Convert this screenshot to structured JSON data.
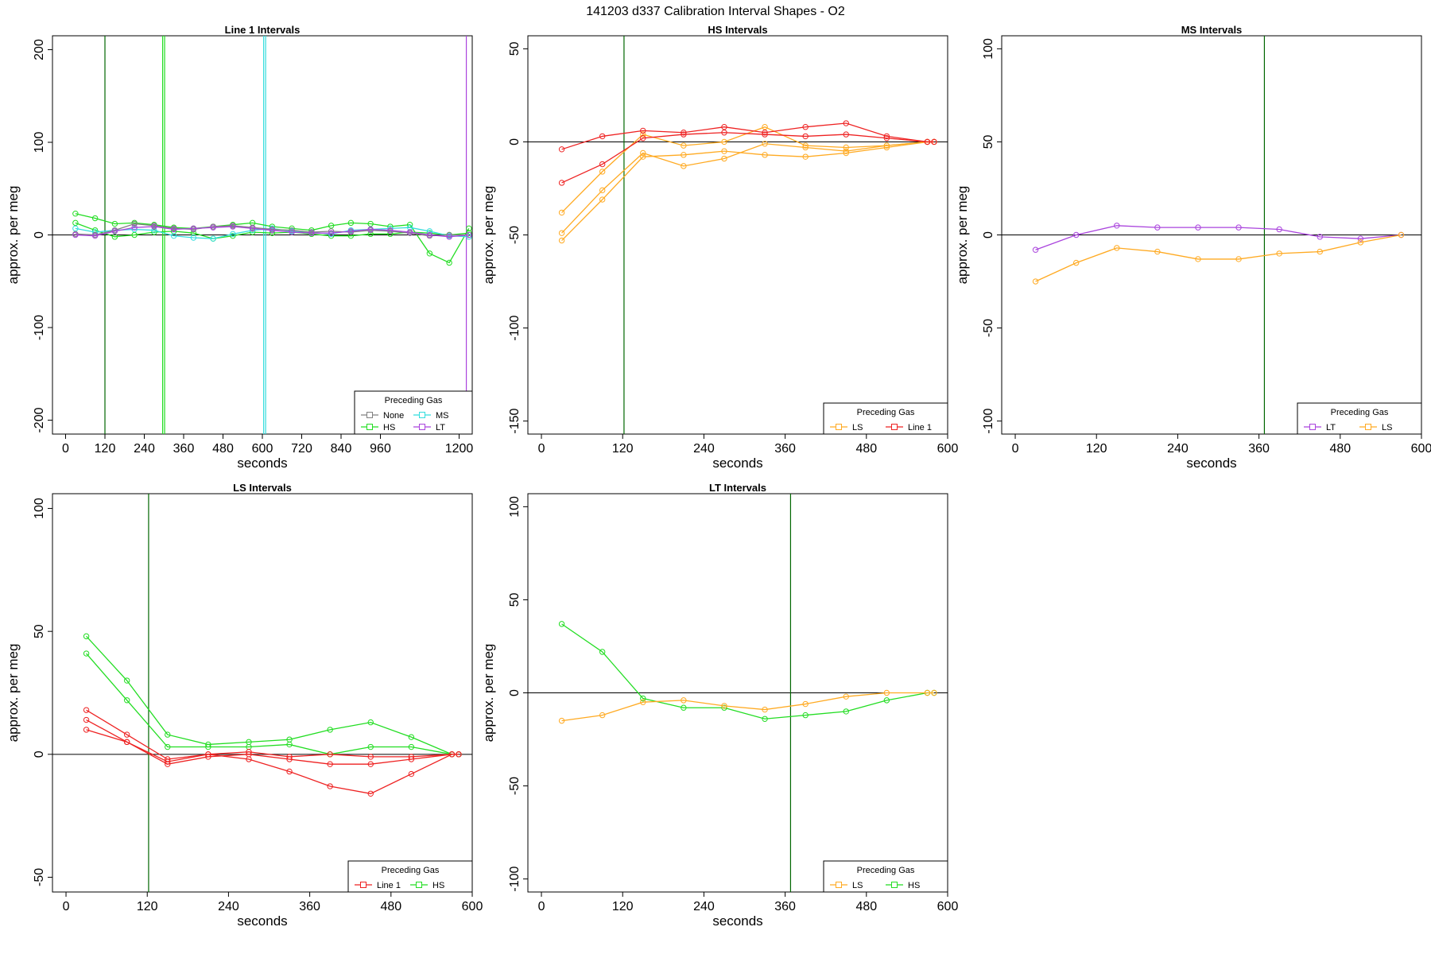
{
  "figure": {
    "title": "141203   d337   Calibration Interval Shapes - O2"
  },
  "colors": {
    "None": "#808080",
    "HS": "#22dd22",
    "MS": "#33dddd",
    "LT": "#aa44dd",
    "LS": "#ffaa22",
    "Line 1": "#ee2222",
    "vline": "#006600",
    "axis": "#000000"
  },
  "chart_data": [
    {
      "type": "line",
      "title": "Line 1 Intervals",
      "xlabel": "seconds",
      "ylabel": "approx. per meg",
      "xlim": [
        -40,
        1240
      ],
      "ylim": [
        -215,
        215
      ],
      "xticks": [
        0,
        120,
        240,
        360,
        480,
        600,
        720,
        840,
        960,
        1200
      ],
      "yticks": [
        -200,
        -100,
        0,
        100,
        200
      ],
      "vlines": [
        {
          "x": 120,
          "color": "vline"
        },
        {
          "x": 296,
          "color": "HS"
        },
        {
          "x": 302,
          "color": "HS"
        },
        {
          "x": 604,
          "color": "MS"
        },
        {
          "x": 610,
          "color": "MS"
        },
        {
          "x": 1222,
          "color": "LT"
        }
      ],
      "legend": {
        "title": "Preceding Gas",
        "position": "bottom-right",
        "columns": 2,
        "marker": "square",
        "entries": [
          "None",
          "MS",
          "HS",
          "LT"
        ]
      },
      "series": [
        {
          "name": "HS",
          "x": [
            30,
            90,
            150,
            210,
            270,
            330,
            390,
            450,
            510,
            570,
            630,
            690,
            750,
            810,
            870,
            930,
            990,
            1050,
            1110,
            1170,
            1230
          ],
          "y": [
            23,
            18,
            12,
            13,
            11,
            8,
            7,
            9,
            11,
            13,
            9,
            7,
            5,
            10,
            13,
            12,
            9,
            11,
            -20,
            -30,
            7
          ]
        },
        {
          "name": "HS",
          "x": [
            30,
            90,
            150,
            210,
            270,
            330,
            390,
            450,
            510,
            570,
            630,
            690,
            750,
            810,
            870,
            930,
            990,
            1050,
            1110,
            1170,
            1230
          ],
          "y": [
            13,
            5,
            -2,
            0,
            3,
            4,
            2,
            -4,
            -1,
            3,
            2,
            3,
            1,
            -1,
            -1,
            1,
            1,
            3,
            2,
            0,
            2
          ]
        },
        {
          "name": "MS",
          "x": [
            30,
            90,
            150,
            210,
            270,
            330,
            390,
            450,
            510,
            570,
            630,
            690,
            750,
            810,
            870,
            930,
            990,
            1050,
            1110,
            1170,
            1230
          ],
          "y": [
            7,
            3,
            5,
            6,
            5,
            -1,
            -3,
            -4,
            1,
            5,
            7,
            4,
            3,
            1,
            5,
            6,
            7,
            8,
            4,
            -1,
            -2
          ]
        },
        {
          "name": "None",
          "x": [
            30,
            90,
            150,
            210,
            270,
            330,
            390,
            450,
            510,
            570,
            630,
            690,
            750,
            810,
            870,
            930,
            990,
            1050,
            1110,
            1170,
            1230
          ],
          "y": [
            1,
            0,
            5,
            12,
            10,
            7,
            6,
            9,
            10,
            8,
            6,
            5,
            3,
            4,
            3,
            5,
            4,
            2,
            -1,
            0,
            0
          ]
        },
        {
          "name": "LT",
          "x": [
            30,
            90,
            150,
            210,
            270,
            330,
            390,
            450,
            510,
            570,
            630,
            690,
            750,
            810,
            870,
            930,
            990,
            1050,
            1110,
            1170,
            1230
          ],
          "y": [
            0,
            -1,
            4,
            8,
            9,
            6,
            7,
            8,
            9,
            7,
            5,
            3,
            2,
            2,
            4,
            6,
            5,
            3,
            0,
            -2,
            0
          ]
        }
      ]
    },
    {
      "type": "line",
      "title": "HS Intervals",
      "xlabel": "seconds",
      "ylabel": "approx. per meg",
      "xlim": [
        -20,
        600
      ],
      "ylim": [
        -157,
        57
      ],
      "xticks": [
        0,
        120,
        240,
        360,
        480,
        600
      ],
      "yticks": [
        -150,
        -100,
        -50,
        0,
        50
      ],
      "vlines": [
        {
          "x": 122,
          "color": "vline"
        }
      ],
      "legend": {
        "title": "Preceding Gas",
        "position": "bottom-right",
        "columns": 2,
        "marker": "square",
        "entries": [
          "LS",
          "Line 1"
        ]
      },
      "series": [
        {
          "name": "LS",
          "x": [
            30,
            90,
            150,
            210,
            270,
            330,
            390,
            450,
            510,
            570,
            580
          ],
          "y": [
            -38,
            -16,
            4,
            -2,
            0,
            8,
            -2,
            -3,
            -2,
            0,
            0
          ]
        },
        {
          "name": "LS",
          "x": [
            30,
            90,
            150,
            210,
            270,
            330,
            390,
            450,
            510,
            570,
            580
          ],
          "y": [
            -49,
            -26,
            -6,
            -13,
            -9,
            -1,
            -3,
            -5,
            -2,
            0,
            0
          ]
        },
        {
          "name": "LS",
          "x": [
            30,
            90,
            150,
            210,
            270,
            330,
            390,
            450,
            510,
            570,
            580
          ],
          "y": [
            -53,
            -31,
            -8,
            -7,
            -5,
            -7,
            -8,
            -6,
            -3,
            0,
            0
          ]
        },
        {
          "name": "Line 1",
          "x": [
            30,
            90,
            150,
            210,
            270,
            330,
            390,
            450,
            510,
            570,
            580
          ],
          "y": [
            -4,
            3,
            6,
            5,
            8,
            5,
            8,
            10,
            3,
            0,
            0
          ]
        },
        {
          "name": "Line 1",
          "x": [
            30,
            90,
            150,
            210,
            270,
            330,
            390,
            450,
            510,
            570,
            580
          ],
          "y": [
            -22,
            -12,
            2,
            4,
            5,
            4,
            3,
            4,
            2,
            0,
            0
          ]
        }
      ]
    },
    {
      "type": "line",
      "title": "MS Intervals",
      "xlabel": "seconds",
      "ylabel": "approx. per meg",
      "xlim": [
        -20,
        600
      ],
      "ylim": [
        -107,
        107
      ],
      "xticks": [
        0,
        120,
        240,
        360,
        480,
        600
      ],
      "yticks": [
        -100,
        -50,
        0,
        50,
        100
      ],
      "vlines": [
        {
          "x": 368,
          "color": "vline"
        }
      ],
      "legend": {
        "title": "Preceding Gas",
        "position": "bottom-right",
        "columns": 2,
        "marker": "square",
        "entries": [
          "LT",
          "LS"
        ]
      },
      "series": [
        {
          "name": "LT",
          "x": [
            30,
            90,
            150,
            210,
            270,
            330,
            390,
            450,
            510,
            570
          ],
          "y": [
            -8,
            0,
            5,
            4,
            4,
            4,
            3,
            -1,
            -2,
            0
          ]
        },
        {
          "name": "LS",
          "x": [
            30,
            90,
            150,
            210,
            270,
            330,
            390,
            450,
            510,
            570
          ],
          "y": [
            -25,
            -15,
            -7,
            -9,
            -13,
            -13,
            -10,
            -9,
            -4,
            0
          ]
        }
      ]
    },
    {
      "type": "line",
      "title": "LS Intervals",
      "xlabel": "seconds",
      "ylabel": "approx. per meg",
      "xlim": [
        -20,
        600
      ],
      "ylim": [
        -56,
        106
      ],
      "xticks": [
        0,
        120,
        240,
        360,
        480,
        600
      ],
      "yticks": [
        -50,
        0,
        50,
        100
      ],
      "vlines": [
        {
          "x": 122,
          "color": "vline"
        }
      ],
      "legend": {
        "title": "Preceding Gas",
        "position": "bottom-right",
        "columns": 2,
        "marker": "square",
        "entries": [
          "Line 1",
          "HS"
        ]
      },
      "series": [
        {
          "name": "HS",
          "x": [
            30,
            90,
            150,
            210,
            270,
            330,
            390,
            450,
            510,
            570,
            580
          ],
          "y": [
            48,
            30,
            8,
            4,
            5,
            6,
            10,
            13,
            7,
            0,
            0
          ]
        },
        {
          "name": "HS",
          "x": [
            30,
            90,
            150,
            210,
            270,
            330,
            390,
            450,
            510,
            570,
            580
          ],
          "y": [
            41,
            22,
            3,
            3,
            3,
            4,
            0,
            3,
            3,
            0,
            0
          ]
        },
        {
          "name": "Line 1",
          "x": [
            30,
            90,
            150,
            210,
            270,
            330,
            390,
            450,
            510,
            570,
            580
          ],
          "y": [
            18,
            8,
            -2,
            0,
            1,
            -1,
            0,
            -1,
            -1,
            0,
            0
          ]
        },
        {
          "name": "Line 1",
          "x": [
            30,
            90,
            150,
            210,
            270,
            330,
            390,
            450,
            510,
            570,
            580
          ],
          "y": [
            14,
            5,
            -4,
            -1,
            0,
            -2,
            -4,
            -4,
            -2,
            0,
            0
          ]
        },
        {
          "name": "Line 1",
          "x": [
            30,
            90,
            150,
            210,
            270,
            330,
            390,
            450,
            510,
            570,
            580
          ],
          "y": [
            10,
            5,
            -3,
            0,
            -2,
            -7,
            -13,
            -16,
            -8,
            0,
            0
          ]
        }
      ]
    },
    {
      "type": "line",
      "title": "LT Intervals",
      "xlabel": "seconds",
      "ylabel": "approx. per meg",
      "xlim": [
        -20,
        600
      ],
      "ylim": [
        -107,
        107
      ],
      "xticks": [
        0,
        120,
        240,
        360,
        480,
        600
      ],
      "yticks": [
        -100,
        -50,
        0,
        50,
        100
      ],
      "vlines": [
        {
          "x": 368,
          "color": "vline"
        }
      ],
      "legend": {
        "title": "Preceding Gas",
        "position": "bottom-right",
        "columns": 2,
        "marker": "square",
        "entries": [
          "LS",
          "HS"
        ]
      },
      "series": [
        {
          "name": "HS",
          "x": [
            30,
            90,
            150,
            210,
            270,
            330,
            390,
            450,
            510,
            570,
            580
          ],
          "y": [
            37,
            22,
            -3,
            -8,
            -8,
            -14,
            -12,
            -10,
            -4,
            0,
            0
          ]
        },
        {
          "name": "LS",
          "x": [
            30,
            90,
            150,
            210,
            270,
            330,
            390,
            450,
            510,
            570,
            580
          ],
          "y": [
            -15,
            -12,
            -5,
            -4,
            -7,
            -9,
            -6,
            -2,
            0,
            0,
            0
          ]
        }
      ]
    }
  ]
}
